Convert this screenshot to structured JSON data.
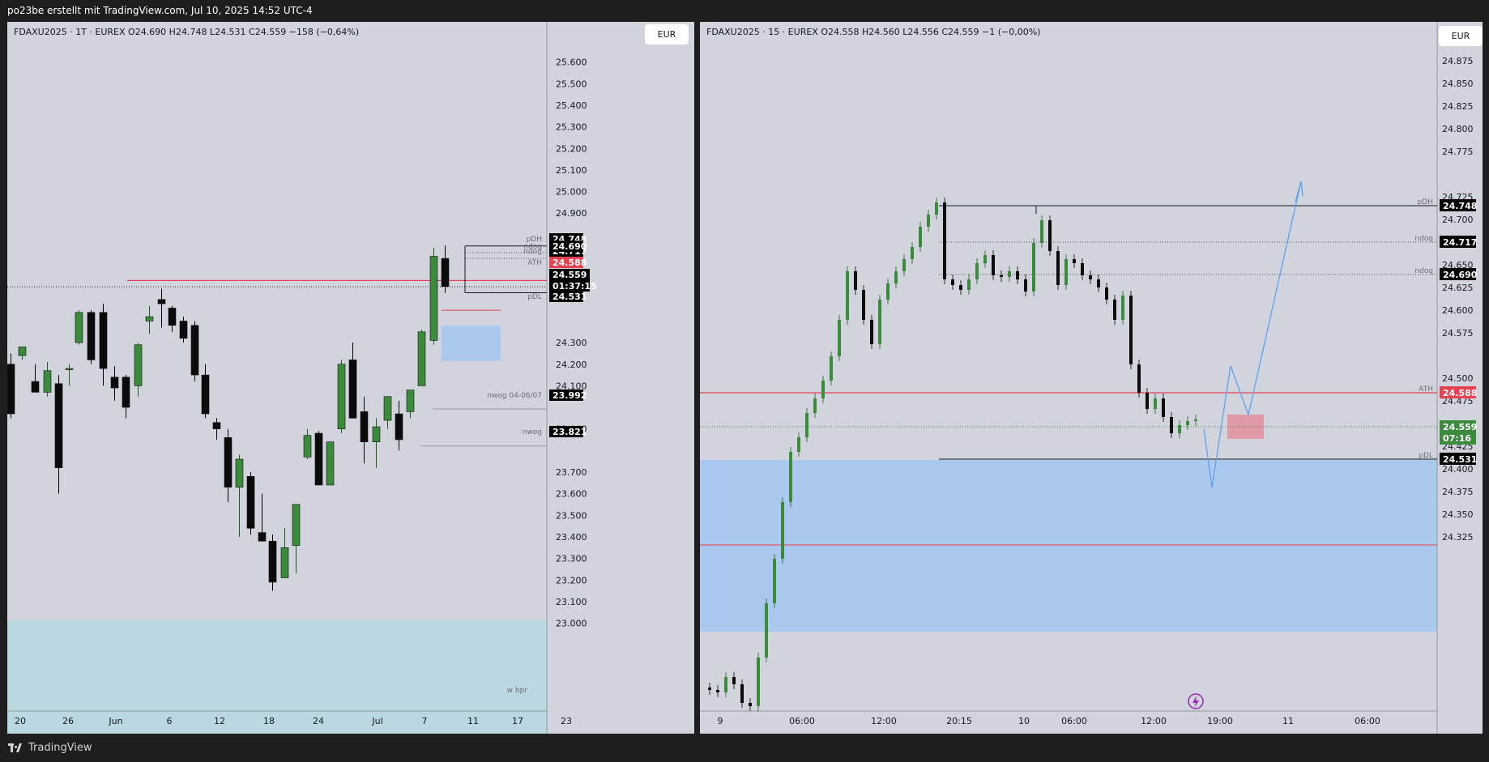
{
  "header": {
    "title": "po23be erstellt mit TradingView.com, Jul 10, 2025 14:52 UTC-4"
  },
  "footer": {
    "brand": "TradingView"
  },
  "colors": {
    "bull": "#3c8b3c",
    "bear": "#0b0b0b",
    "ath": "#e84152",
    "zone_blue": "#a6c6ef",
    "zone_teal": "#b7d7df",
    "pink": "#e48a9a",
    "accent_blue": "#5ea2ee",
    "purple": "#9c27b0"
  },
  "left_chart": {
    "legend": "FDAXU2025 · 1T · EUREX   O24.690   H24.748   L24.531   C24.559   −158 (−0,64%)",
    "currency": "EUR",
    "price_labels": [
      "25.600",
      "25.500",
      "25.400",
      "25.300",
      "25.200",
      "25.100",
      "25.000",
      "24.900",
      "24.300",
      "24.200",
      "24.100",
      "23.900",
      "23.700",
      "23.600",
      "23.500",
      "23.400",
      "23.300",
      "23.200",
      "23.100",
      "23.000"
    ],
    "time_labels": [
      "20",
      "26",
      "Jun",
      "6",
      "12",
      "18",
      "24",
      "Jul",
      "7",
      "11",
      "17",
      "23"
    ],
    "tags": [
      {
        "value": "24.748",
        "note": "pDH"
      },
      {
        "value": "24.717",
        "note": "ndog"
      },
      {
        "value": "24.690",
        "note": "ndog"
      },
      {
        "value": "24.588",
        "note": "ATH"
      },
      {
        "value": "24.559",
        "note": "",
        "countdown": "01:37:15"
      },
      {
        "value": "24.531",
        "note": "pDL"
      },
      {
        "value": "23.992",
        "note": "nwog 04-06/07"
      },
      {
        "value": "23.821",
        "note": "nwog"
      }
    ],
    "zone_note": "w bpr"
  },
  "right_chart": {
    "legend": "FDAXU2025 · 15 · EUREX   O24.558   H24.560   L24.556   C24.559   −1 (−0,00%)",
    "currency": "EUR",
    "price_labels": [
      "24.875",
      "24.850",
      "24.825",
      "24.800",
      "24.775",
      "24.725",
      "24.700",
      "24.675",
      "24.650",
      "24.625",
      "24.600",
      "24.575",
      "24.500",
      "24.475",
      "24.450",
      "24.425",
      "24.400",
      "24.375",
      "24.350",
      "24.325"
    ],
    "time_labels": [
      "9",
      "06:00",
      "12:00",
      "20:15",
      "10",
      "06:00",
      "12:00",
      "19:00",
      "11",
      "06:00"
    ],
    "tags": [
      {
        "value": "24.748",
        "note": "pDH"
      },
      {
        "value": "24.717",
        "note": "ndog"
      },
      {
        "value": "24.690",
        "note": "ndog"
      },
      {
        "value": "24.588",
        "note": "ATH"
      },
      {
        "value": "24.559",
        "note": "",
        "countdown": "07:16"
      },
      {
        "value": "24.531",
        "note": "pDL"
      }
    ],
    "projection_path": [
      [
        24.56,
        "19:00 - 3h"
      ],
      [
        24.51,
        ""
      ],
      [
        24.61,
        ""
      ],
      [
        24.56,
        ""
      ],
      [
        24.77,
        ""
      ]
    ]
  }
}
